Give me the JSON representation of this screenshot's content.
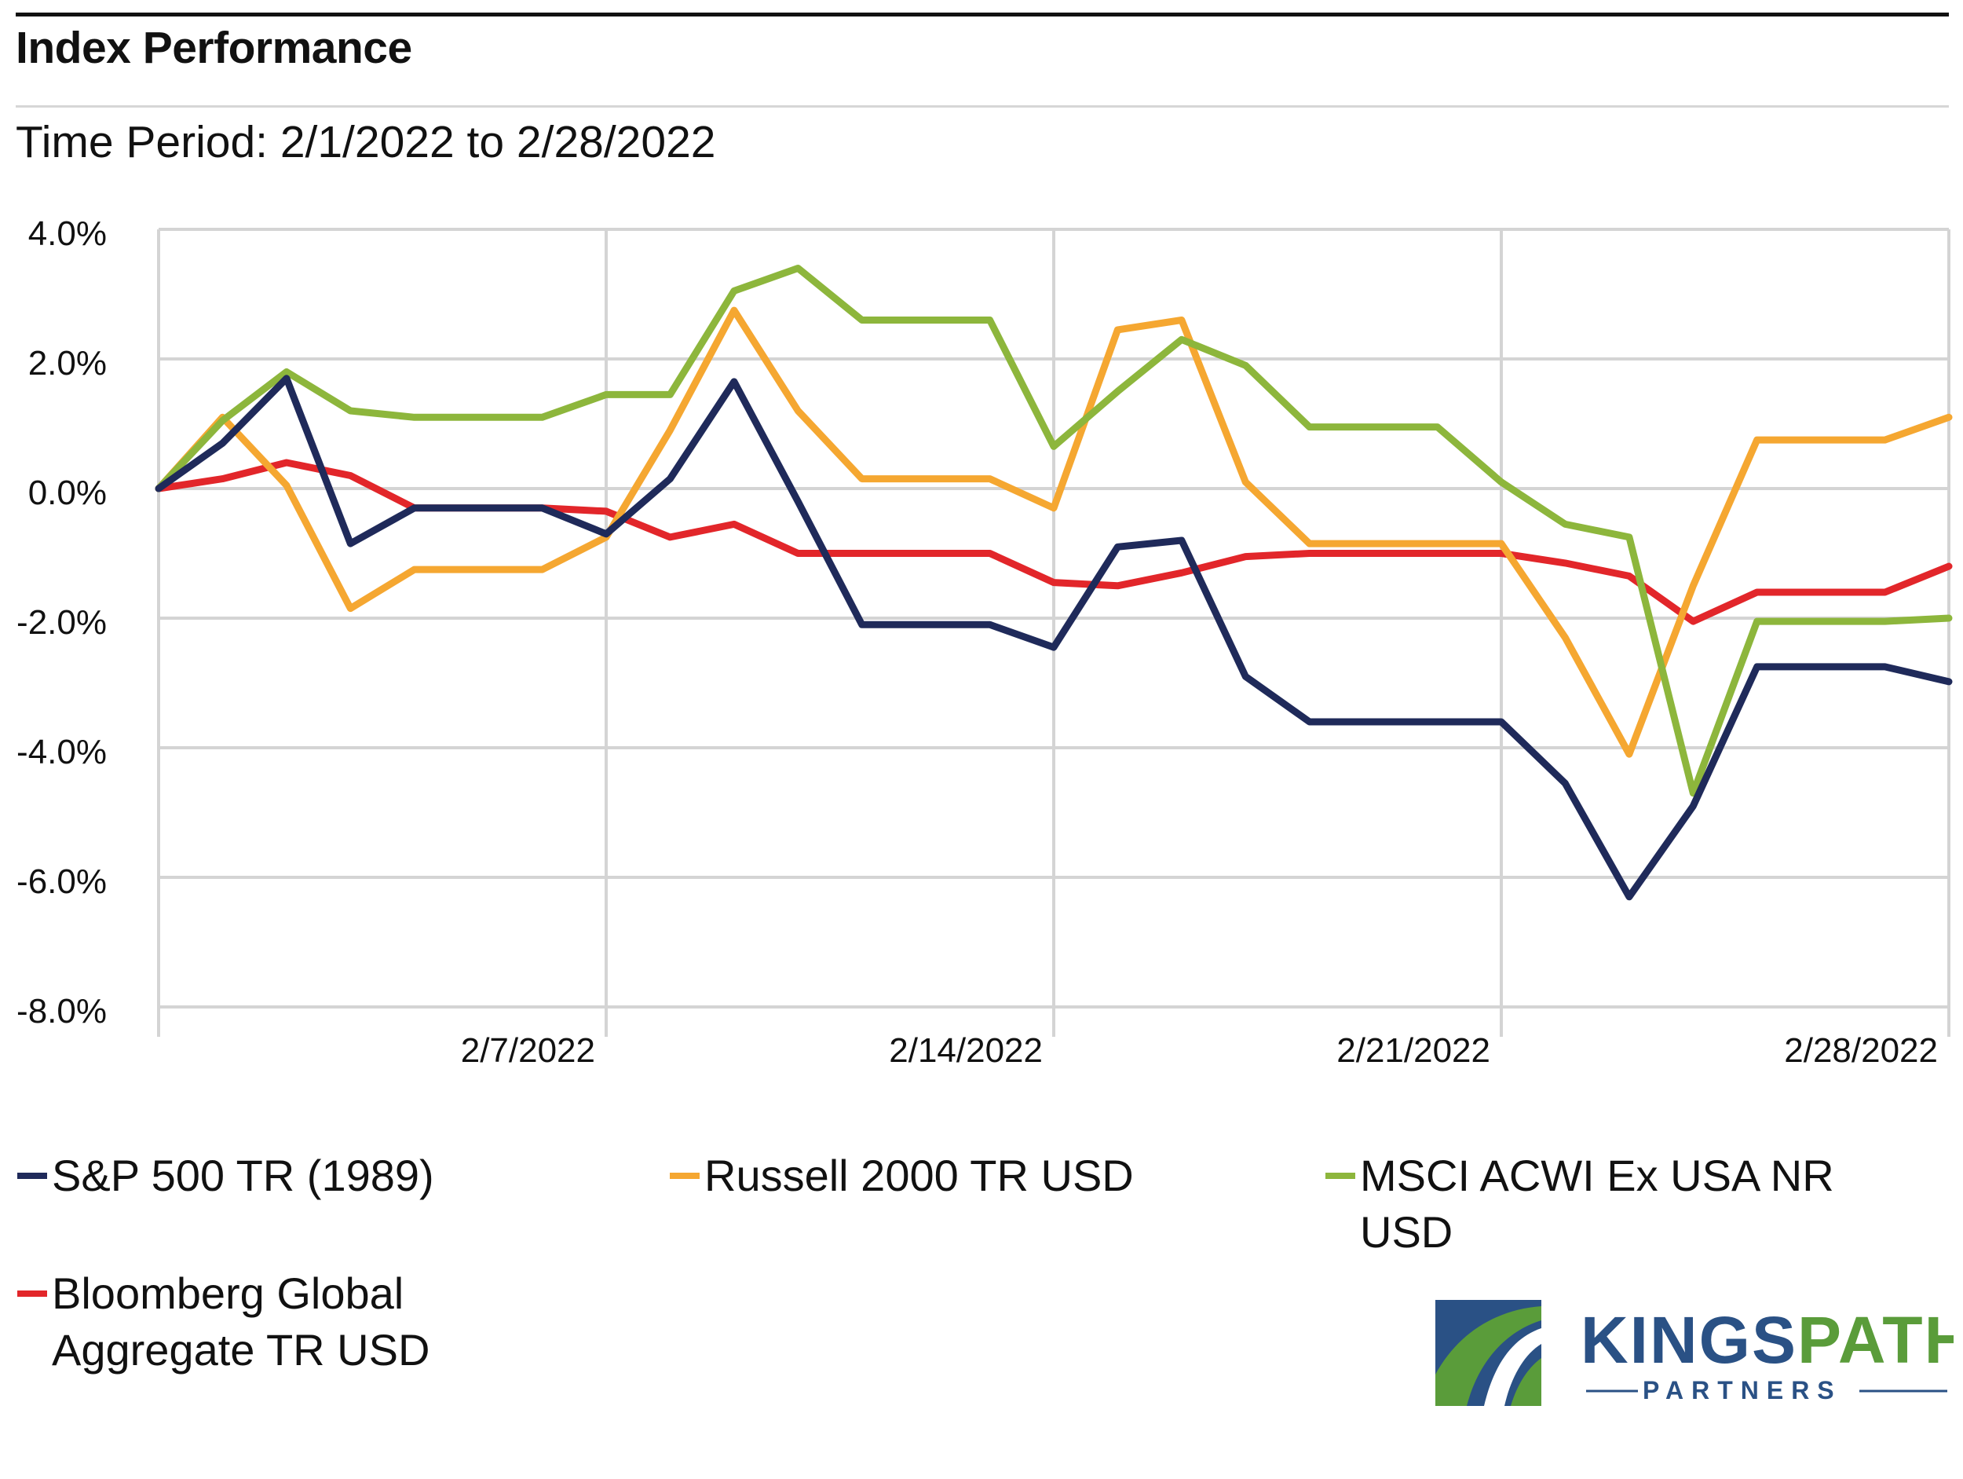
{
  "header": {
    "title": "Index Performance",
    "subtitle": "Time Period: 2/1/2022 to 2/28/2022"
  },
  "chart_data": {
    "type": "line",
    "title": "Index Performance",
    "subtitle": "Time Period: 2/1/2022 to 2/28/2022",
    "xlabel": "",
    "ylabel": "",
    "ylim": [
      -8.0,
      4.0
    ],
    "yticks": [
      4.0,
      2.0,
      0.0,
      -2.0,
      -4.0,
      -6.0,
      -8.0
    ],
    "ytick_labels": [
      "4.0%",
      "2.0%",
      "0.0%",
      "-2.0%",
      "-4.0%",
      "-6.0%",
      "-8.0%"
    ],
    "xlim": [
      0,
      28
    ],
    "xticks": [
      0,
      7,
      14,
      21,
      28
    ],
    "xtick_labels": [
      "",
      "2/7/2022",
      "2/14/2022",
      "2/21/2022",
      "2/28/2022"
    ],
    "grid": true,
    "legend_position": "bottom",
    "x": [
      0,
      1,
      2,
      3,
      4,
      5,
      6,
      7,
      8,
      9,
      10,
      11,
      12,
      13,
      14,
      15,
      16,
      17,
      18,
      19,
      20,
      21,
      22,
      23,
      24,
      25,
      26,
      27,
      28
    ],
    "series": [
      {
        "name": "S&P 500 TR (1989)",
        "color": "#1f2a5a",
        "values": [
          0.0,
          0.7,
          1.7,
          -0.85,
          -0.3,
          -0.3,
          -0.3,
          -0.7,
          0.15,
          1.65,
          -0.2,
          -2.1,
          -2.1,
          -2.1,
          -2.45,
          -0.9,
          -0.8,
          -2.9,
          -3.6,
          -3.6,
          -3.6,
          -3.6,
          -4.55,
          -6.3,
          -4.9,
          -2.75,
          -2.75,
          -2.75,
          -2.98
        ]
      },
      {
        "name": "Russell 2000 TR USD",
        "color": "#f5a731",
        "values": [
          0.0,
          1.1,
          0.05,
          -1.85,
          -1.25,
          -1.25,
          -1.25,
          -0.75,
          0.9,
          2.75,
          1.2,
          0.15,
          0.15,
          0.15,
          -0.3,
          2.45,
          2.6,
          0.1,
          -0.85,
          -0.85,
          -0.85,
          -0.85,
          -2.3,
          -4.1,
          -1.5,
          0.75,
          0.75,
          0.75,
          1.1
        ]
      },
      {
        "name": "MSCI ACWI Ex USA NR USD",
        "color": "#8db63c",
        "values": [
          0.0,
          1.05,
          1.8,
          1.2,
          1.1,
          1.1,
          1.1,
          1.45,
          1.45,
          3.05,
          3.4,
          2.6,
          2.6,
          2.6,
          0.65,
          1.5,
          2.3,
          1.9,
          0.95,
          0.95,
          0.95,
          0.1,
          -0.55,
          -0.75,
          -4.7,
          -2.05,
          -2.05,
          -2.05,
          -2.0
        ]
      },
      {
        "name": "Bloomberg Global Aggregate TR USD",
        "color": "#e2262a",
        "values": [
          0.0,
          0.15,
          0.4,
          0.2,
          -0.3,
          -0.3,
          -0.3,
          -0.35,
          -0.75,
          -0.55,
          -1.0,
          -1.0,
          -1.0,
          -1.0,
          -1.45,
          -1.5,
          -1.3,
          -1.05,
          -1.0,
          -1.0,
          -1.0,
          -1.0,
          -1.15,
          -1.35,
          -2.05,
          -1.6,
          -1.6,
          -1.6,
          -1.2
        ]
      }
    ]
  },
  "legend": {
    "items": [
      {
        "label": "S&P 500 TR (1989)",
        "color": "#1f2a5a"
      },
      {
        "label": "Russell 2000 TR USD",
        "color": "#f5a731"
      },
      {
        "label": "MSCI ACWI Ex USA NR USD",
        "color": "#8db63c"
      },
      {
        "label": "Bloomberg Global Aggregate TR USD",
        "color": "#e2262a"
      }
    ]
  },
  "logo": {
    "name_primary": "KINGS",
    "name_secondary": "PATH",
    "tagline": "PARTNERS",
    "colors": {
      "navy": "#2a5185",
      "green": "#5a9c3a"
    }
  }
}
